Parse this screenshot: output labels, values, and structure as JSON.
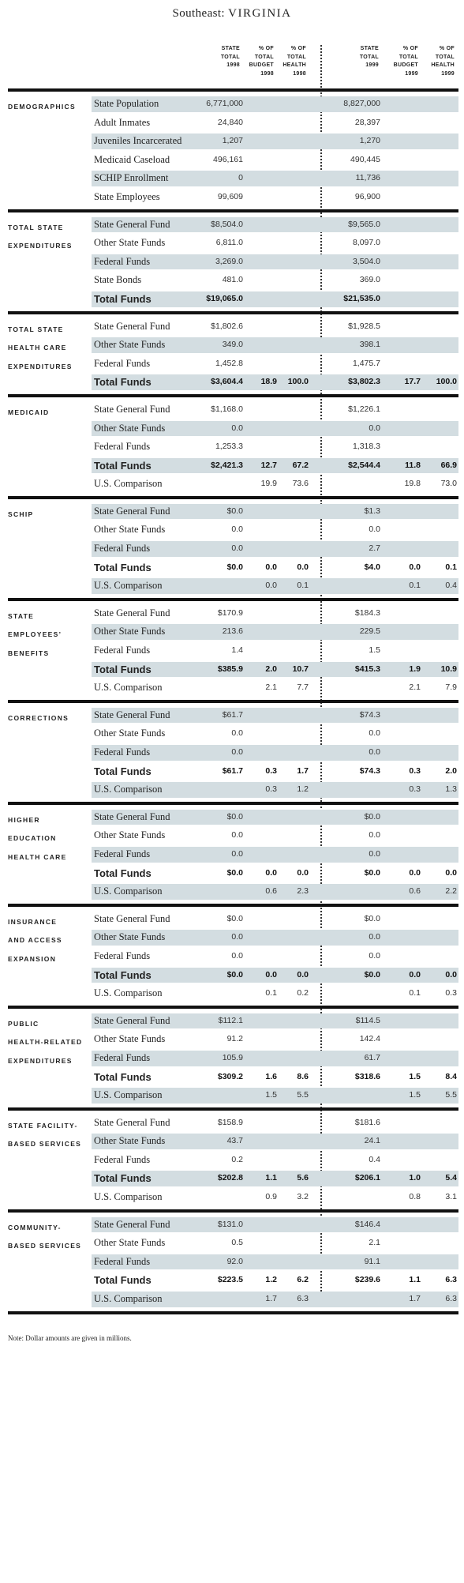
{
  "title": {
    "region": "Southeast:",
    "state": "VIRGINIA"
  },
  "header": {
    "col1": [
      "STATE",
      "TOTAL",
      "1998"
    ],
    "col2": [
      "% OF",
      "TOTAL",
      "BUDGET",
      "1998"
    ],
    "col3": [
      "% OF",
      "TOTAL",
      "HEALTH",
      "1998"
    ],
    "col4": [
      "STATE",
      "TOTAL",
      "1999"
    ],
    "col5": [
      "% OF",
      "TOTAL",
      "BUDGET",
      "1999"
    ],
    "col6": [
      "% OF",
      "TOTAL",
      "HEALTH",
      "1999"
    ]
  },
  "sections": [
    {
      "label": [
        "DEMOGRAPHICS"
      ],
      "rows": [
        {
          "label": "State Population",
          "shade": true,
          "v": [
            "6,771,000",
            "",
            "",
            "8,827,000",
            "",
            ""
          ]
        },
        {
          "label": "Adult Inmates",
          "shade": false,
          "v": [
            "24,840",
            "",
            "",
            "28,397",
            "",
            ""
          ]
        },
        {
          "label": "Juveniles Incarcerated",
          "shade": true,
          "v": [
            "1,207",
            "",
            "",
            "1,270",
            "",
            ""
          ]
        },
        {
          "label": "Medicaid Caseload",
          "shade": false,
          "v": [
            "496,161",
            "",
            "",
            "490,445",
            "",
            ""
          ]
        },
        {
          "label": "SCHIP Enrollment",
          "shade": true,
          "v": [
            "0",
            "",
            "",
            "11,736",
            "",
            ""
          ]
        },
        {
          "label": "State Employees",
          "shade": false,
          "v": [
            "99,609",
            "",
            "",
            "96,900",
            "",
            ""
          ]
        }
      ]
    },
    {
      "label": [
        "TOTAL STATE",
        "EXPENDITURES"
      ],
      "rows": [
        {
          "label": "State General Fund",
          "shade": true,
          "v": [
            "$8,504.0",
            "",
            "",
            "$9,565.0",
            "",
            ""
          ]
        },
        {
          "label": "Other State Funds",
          "shade": false,
          "v": [
            "6,811.0",
            "",
            "",
            "8,097.0",
            "",
            ""
          ]
        },
        {
          "label": "Federal Funds",
          "shade": true,
          "v": [
            "3,269.0",
            "",
            "",
            "3,504.0",
            "",
            ""
          ]
        },
        {
          "label": "State Bonds",
          "shade": false,
          "v": [
            "481.0",
            "",
            "",
            "369.0",
            "",
            ""
          ]
        },
        {
          "label": "Total Funds",
          "shade": true,
          "total": true,
          "v": [
            "$19,065.0",
            "",
            "",
            "$21,535.0",
            "",
            ""
          ]
        }
      ]
    },
    {
      "label": [
        "TOTAL STATE",
        "HEALTH CARE",
        "EXPENDITURES"
      ],
      "rows": [
        {
          "label": "State General Fund",
          "shade": false,
          "v": [
            "$1,802.6",
            "",
            "",
            "$1,928.5",
            "",
            ""
          ]
        },
        {
          "label": "Other State Funds",
          "shade": true,
          "v": [
            "349.0",
            "",
            "",
            "398.1",
            "",
            ""
          ]
        },
        {
          "label": "Federal Funds",
          "shade": false,
          "v": [
            "1,452.8",
            "",
            "",
            "1,475.7",
            "",
            ""
          ]
        },
        {
          "label": "Total Funds",
          "shade": true,
          "total": true,
          "v": [
            "$3,604.4",
            "18.9",
            "100.0",
            "$3,802.3",
            "17.7",
            "100.0"
          ]
        }
      ]
    },
    {
      "label": [
        "MEDICAID"
      ],
      "rows": [
        {
          "label": "State General Fund",
          "shade": false,
          "v": [
            "$1,168.0",
            "",
            "",
            "$1,226.1",
            "",
            ""
          ]
        },
        {
          "label": "Other State Funds",
          "shade": true,
          "v": [
            "0.0",
            "",
            "",
            "0.0",
            "",
            ""
          ]
        },
        {
          "label": "Federal Funds",
          "shade": false,
          "v": [
            "1,253.3",
            "",
            "",
            "1,318.3",
            "",
            ""
          ]
        },
        {
          "label": "Total Funds",
          "shade": true,
          "total": true,
          "v": [
            "$2,421.3",
            "12.7",
            "67.2",
            "$2,544.4",
            "11.8",
            "66.9"
          ]
        },
        {
          "label": "U.S. Comparison",
          "shade": false,
          "v": [
            "",
            "19.9",
            "73.6",
            "",
            "19.8",
            "73.0"
          ]
        }
      ]
    },
    {
      "label": [
        "SCHIP"
      ],
      "rows": [
        {
          "label": "State General Fund",
          "shade": true,
          "v": [
            "$0.0",
            "",
            "",
            "$1.3",
            "",
            ""
          ]
        },
        {
          "label": "Other State Funds",
          "shade": false,
          "v": [
            "0.0",
            "",
            "",
            "0.0",
            "",
            ""
          ]
        },
        {
          "label": "Federal Funds",
          "shade": true,
          "v": [
            "0.0",
            "",
            "",
            "2.7",
            "",
            ""
          ]
        },
        {
          "label": "Total Funds",
          "shade": false,
          "total": true,
          "v": [
            "$0.0",
            "0.0",
            "0.0",
            "$4.0",
            "0.0",
            "0.1"
          ]
        },
        {
          "label": "U.S. Comparison",
          "shade": true,
          "v": [
            "",
            "0.0",
            "0.1",
            "",
            "0.1",
            "0.4"
          ]
        }
      ]
    },
    {
      "label": [
        "STATE",
        "EMPLOYEES’",
        "BENEFITS"
      ],
      "rows": [
        {
          "label": "State General Fund",
          "shade": false,
          "v": [
            "$170.9",
            "",
            "",
            "$184.3",
            "",
            ""
          ]
        },
        {
          "label": "Other State Funds",
          "shade": true,
          "v": [
            "213.6",
            "",
            "",
            "229.5",
            "",
            ""
          ]
        },
        {
          "label": "Federal Funds",
          "shade": false,
          "v": [
            "1.4",
            "",
            "",
            "1.5",
            "",
            ""
          ]
        },
        {
          "label": "Total Funds",
          "shade": true,
          "total": true,
          "v": [
            "$385.9",
            "2.0",
            "10.7",
            "$415.3",
            "1.9",
            "10.9"
          ]
        },
        {
          "label": "U.S. Comparison",
          "shade": false,
          "v": [
            "",
            "2.1",
            "7.7",
            "",
            "2.1",
            "7.9"
          ]
        }
      ]
    },
    {
      "label": [
        "CORRECTIONS"
      ],
      "rows": [
        {
          "label": "State General Fund",
          "shade": true,
          "v": [
            "$61.7",
            "",
            "",
            "$74.3",
            "",
            ""
          ]
        },
        {
          "label": "Other State Funds",
          "shade": false,
          "v": [
            "0.0",
            "",
            "",
            "0.0",
            "",
            ""
          ]
        },
        {
          "label": "Federal Funds",
          "shade": true,
          "v": [
            "0.0",
            "",
            "",
            "0.0",
            "",
            ""
          ]
        },
        {
          "label": "Total Funds",
          "shade": false,
          "total": true,
          "v": [
            "$61.7",
            "0.3",
            "1.7",
            "$74.3",
            "0.3",
            "2.0"
          ]
        },
        {
          "label": "U.S. Comparison",
          "shade": true,
          "v": [
            "",
            "0.3",
            "1.2",
            "",
            "0.3",
            "1.3"
          ]
        }
      ]
    },
    {
      "label": [
        "HIGHER",
        "EDUCATION",
        "HEALTH CARE"
      ],
      "rows": [
        {
          "label": "State General Fund",
          "shade": true,
          "v": [
            "$0.0",
            "",
            "",
            "$0.0",
            "",
            ""
          ]
        },
        {
          "label": "Other State Funds",
          "shade": false,
          "v": [
            "0.0",
            "",
            "",
            "0.0",
            "",
            ""
          ]
        },
        {
          "label": "Federal Funds",
          "shade": true,
          "v": [
            "0.0",
            "",
            "",
            "0.0",
            "",
            ""
          ]
        },
        {
          "label": "Total Funds",
          "shade": false,
          "total": true,
          "v": [
            "$0.0",
            "0.0",
            "0.0",
            "$0.0",
            "0.0",
            "0.0"
          ]
        },
        {
          "label": "U.S. Comparison",
          "shade": true,
          "v": [
            "",
            "0.6",
            "2.3",
            "",
            "0.6",
            "2.2"
          ]
        }
      ]
    },
    {
      "label": [
        "INSURANCE",
        "AND ACCESS",
        "EXPANSION"
      ],
      "rows": [
        {
          "label": "State General Fund",
          "shade": false,
          "v": [
            "$0.0",
            "",
            "",
            "$0.0",
            "",
            ""
          ]
        },
        {
          "label": "Other State Funds",
          "shade": true,
          "v": [
            "0.0",
            "",
            "",
            "0.0",
            "",
            ""
          ]
        },
        {
          "label": "Federal Funds",
          "shade": false,
          "v": [
            "0.0",
            "",
            "",
            "0.0",
            "",
            ""
          ]
        },
        {
          "label": "Total Funds",
          "shade": true,
          "total": true,
          "v": [
            "$0.0",
            "0.0",
            "0.0",
            "$0.0",
            "0.0",
            "0.0"
          ]
        },
        {
          "label": "U.S. Comparison",
          "shade": false,
          "v": [
            "",
            "0.1",
            "0.2",
            "",
            "0.1",
            "0.3"
          ]
        }
      ]
    },
    {
      "label": [
        "PUBLIC",
        "HEALTH-RELATED",
        "EXPENDITURES"
      ],
      "rows": [
        {
          "label": "State General Fund",
          "shade": true,
          "v": [
            "$112.1",
            "",
            "",
            "$114.5",
            "",
            ""
          ]
        },
        {
          "label": "Other State Funds",
          "shade": false,
          "v": [
            "91.2",
            "",
            "",
            "142.4",
            "",
            ""
          ]
        },
        {
          "label": "Federal Funds",
          "shade": true,
          "v": [
            "105.9",
            "",
            "",
            "61.7",
            "",
            ""
          ]
        },
        {
          "label": "Total Funds",
          "shade": false,
          "total": true,
          "v": [
            "$309.2",
            "1.6",
            "8.6",
            "$318.6",
            "1.5",
            "8.4"
          ]
        },
        {
          "label": "U.S. Comparison",
          "shade": true,
          "v": [
            "",
            "1.5",
            "5.5",
            "",
            "1.5",
            "5.5"
          ]
        }
      ]
    },
    {
      "label": [
        "STATE FACILITY-",
        "BASED SERVICES"
      ],
      "rows": [
        {
          "label": "State General Fund",
          "shade": false,
          "v": [
            "$158.9",
            "",
            "",
            "$181.6",
            "",
            ""
          ]
        },
        {
          "label": "Other State Funds",
          "shade": true,
          "v": [
            "43.7",
            "",
            "",
            "24.1",
            "",
            ""
          ]
        },
        {
          "label": "Federal Funds",
          "shade": false,
          "v": [
            "0.2",
            "",
            "",
            "0.4",
            "",
            ""
          ]
        },
        {
          "label": "Total Funds",
          "shade": true,
          "total": true,
          "v": [
            "$202.8",
            "1.1",
            "5.6",
            "$206.1",
            "1.0",
            "5.4"
          ]
        },
        {
          "label": "U.S. Comparison",
          "shade": false,
          "v": [
            "",
            "0.9",
            "3.2",
            "",
            "0.8",
            "3.1"
          ]
        }
      ]
    },
    {
      "label": [
        "COMMUNITY-",
        "BASED SERVICES"
      ],
      "rows": [
        {
          "label": "State General Fund",
          "shade": true,
          "v": [
            "$131.0",
            "",
            "",
            "$146.4",
            "",
            ""
          ]
        },
        {
          "label": "Other State Funds",
          "shade": false,
          "v": [
            "0.5",
            "",
            "",
            "2.1",
            "",
            ""
          ]
        },
        {
          "label": "Federal Funds",
          "shade": true,
          "v": [
            "92.0",
            "",
            "",
            "91.1",
            "",
            ""
          ]
        },
        {
          "label": "Total Funds",
          "shade": false,
          "total": true,
          "v": [
            "$223.5",
            "1.2",
            "6.2",
            "$239.6",
            "1.1",
            "6.3"
          ]
        },
        {
          "label": "U.S. Comparison",
          "shade": true,
          "v": [
            "",
            "1.7",
            "6.3",
            "",
            "1.7",
            "6.3"
          ]
        }
      ]
    }
  ],
  "note": "Note: Dollar amounts are given in millions."
}
